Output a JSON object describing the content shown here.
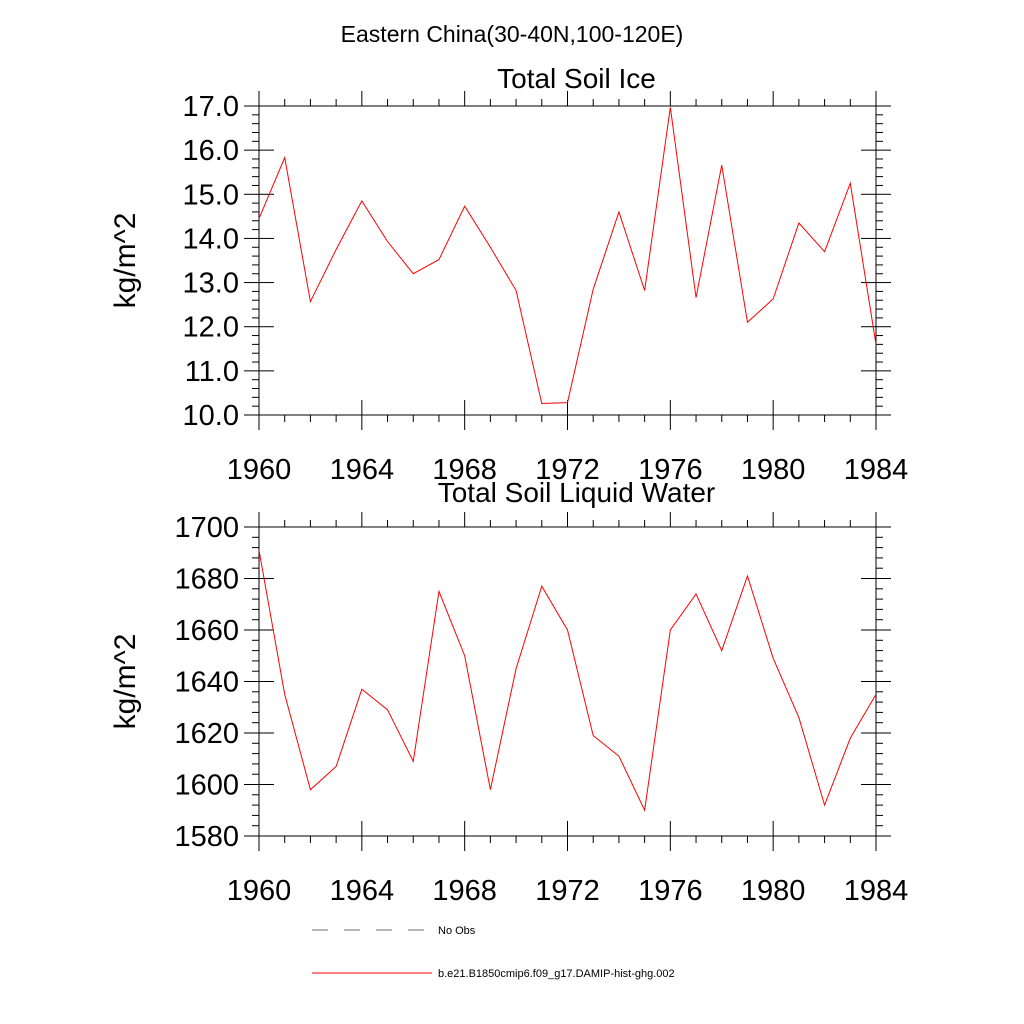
{
  "figure": {
    "suptitle": "Eastern China(30-40N,100-120E)"
  },
  "chart_data": [
    {
      "type": "line",
      "title": "Total Soil Ice",
      "ylabel": "kg/m^2",
      "xlim": [
        1960,
        1984
      ],
      "ylim": [
        10,
        17
      ],
      "xticks": [
        1960,
        1964,
        1968,
        1972,
        1976,
        1980,
        1984
      ],
      "yticks": [
        10,
        11,
        12,
        13,
        14,
        15,
        16,
        17
      ],
      "ytick_labels": [
        "10.0",
        "11.0",
        "12.0",
        "13.0",
        "14.0",
        "15.0",
        "16.0",
        "17.0"
      ],
      "x": [
        1960,
        1961,
        1962,
        1963,
        1964,
        1965,
        1966,
        1967,
        1968,
        1969,
        1970,
        1971,
        1972,
        1973,
        1974,
        1975,
        1976,
        1977,
        1978,
        1979,
        1980,
        1981,
        1982,
        1983,
        1984
      ],
      "series": [
        {
          "name": "b.e21.B1850cmip6.f09_g17.DAMIP-hist-ghg.002",
          "color": "#ff0000",
          "values": [
            14.45,
            15.83,
            12.57,
            13.75,
            14.85,
            13.93,
            13.2,
            13.52,
            14.73,
            13.8,
            12.82,
            10.26,
            10.28,
            12.85,
            14.6,
            12.82,
            16.97,
            12.66,
            15.66,
            12.1,
            12.63,
            14.35,
            13.7,
            15.25,
            11.6
          ]
        }
      ]
    },
    {
      "type": "line",
      "title": "Total Soil Liquid Water",
      "ylabel": "kg/m^2",
      "xlim": [
        1960,
        1984
      ],
      "ylim": [
        1580,
        1700
      ],
      "xticks": [
        1960,
        1964,
        1968,
        1972,
        1976,
        1980,
        1984
      ],
      "yticks": [
        1580,
        1600,
        1620,
        1640,
        1660,
        1680,
        1700
      ],
      "ytick_labels": [
        "1580",
        "1600",
        "1620",
        "1640",
        "1660",
        "1680",
        "1700"
      ],
      "x": [
        1960,
        1961,
        1962,
        1963,
        1964,
        1965,
        1966,
        1967,
        1968,
        1969,
        1970,
        1971,
        1972,
        1973,
        1974,
        1975,
        1976,
        1977,
        1978,
        1979,
        1980,
        1981,
        1982,
        1983,
        1984
      ],
      "series": [
        {
          "name": "b.e21.B1850cmip6.f09_g17.DAMIP-hist-ghg.002",
          "color": "#ff0000",
          "values": [
            1691,
            1635,
            1598,
            1607,
            1637,
            1629,
            1609,
            1675,
            1650,
            1598,
            1645,
            1677,
            1660,
            1619,
            1611,
            1590,
            1660,
            1674,
            1652,
            1681,
            1649,
            1626,
            1592,
            1618,
            1635
          ]
        }
      ]
    }
  ],
  "legend": {
    "items": [
      {
        "label": "No Obs",
        "color": "#6a6a8a",
        "style": "dashed"
      },
      {
        "label": "b.e21.B1850cmip6.f09_g17.DAMIP-hist-ghg.002",
        "color": "#ff0000",
        "style": "solid"
      }
    ]
  }
}
